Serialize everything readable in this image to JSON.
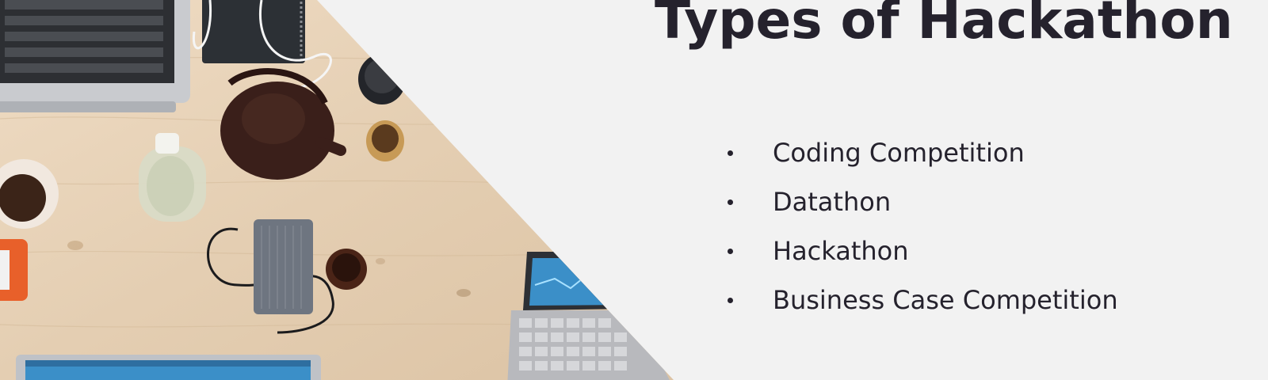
{
  "slide": {
    "title": "Types of Hackathon",
    "bullets": [
      "Coding Competition",
      "Datathon",
      "Hackathon",
      "Business Case Competition"
    ]
  },
  "photo": {
    "subject": "desk-photo",
    "colors": {
      "wood": "#e6d2b8",
      "laptop": "#c9cbcf",
      "screen": "#3b8fc8",
      "teapot": "#3a1f1a",
      "notebook": "#2c3035"
    }
  },
  "colors": {
    "background": "#f2f2f2",
    "text": "#25222d"
  }
}
